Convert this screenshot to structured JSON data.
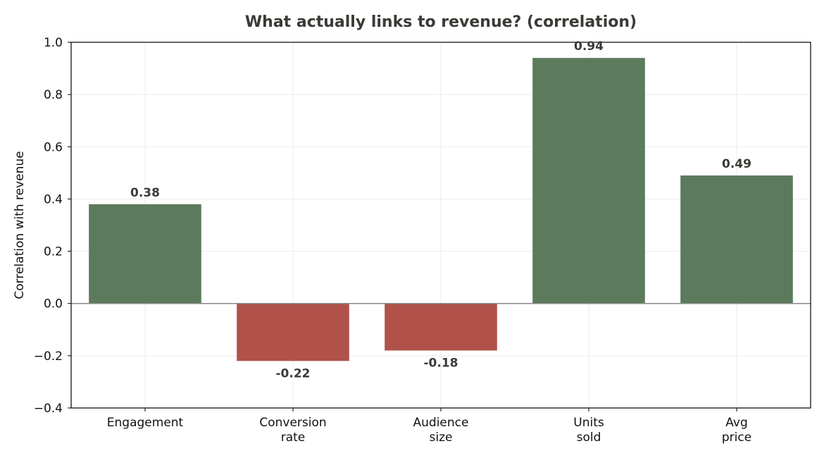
{
  "chart_data": {
    "type": "bar",
    "title": "What actually links to revenue? (correlation)",
    "xlabel": "",
    "ylabel": "Correlation with revenue",
    "categories": [
      [
        "Engagement"
      ],
      [
        "Conversion",
        "rate"
      ],
      [
        "Audience",
        "size"
      ],
      [
        "Units",
        "sold"
      ],
      [
        "Avg",
        "price"
      ]
    ],
    "values": [
      0.38,
      -0.22,
      -0.18,
      0.94,
      0.49
    ],
    "value_labels": [
      "0.38",
      "-0.22",
      "-0.18",
      "0.94",
      "0.49"
    ],
    "ylim": [
      -0.4,
      1.0
    ],
    "yticks": [
      -0.4,
      -0.2,
      0.0,
      0.2,
      0.4,
      0.6,
      0.8,
      1.0
    ],
    "ytick_labels": [
      "−0.4",
      "−0.2",
      "0.0",
      "0.2",
      "0.4",
      "0.6",
      "0.8",
      "1.0"
    ],
    "grid": true,
    "colors": {
      "positive": "#5b7b5c",
      "negative": "#b0524a",
      "grid": "#ebebeb",
      "zero_line": "#888888"
    }
  }
}
